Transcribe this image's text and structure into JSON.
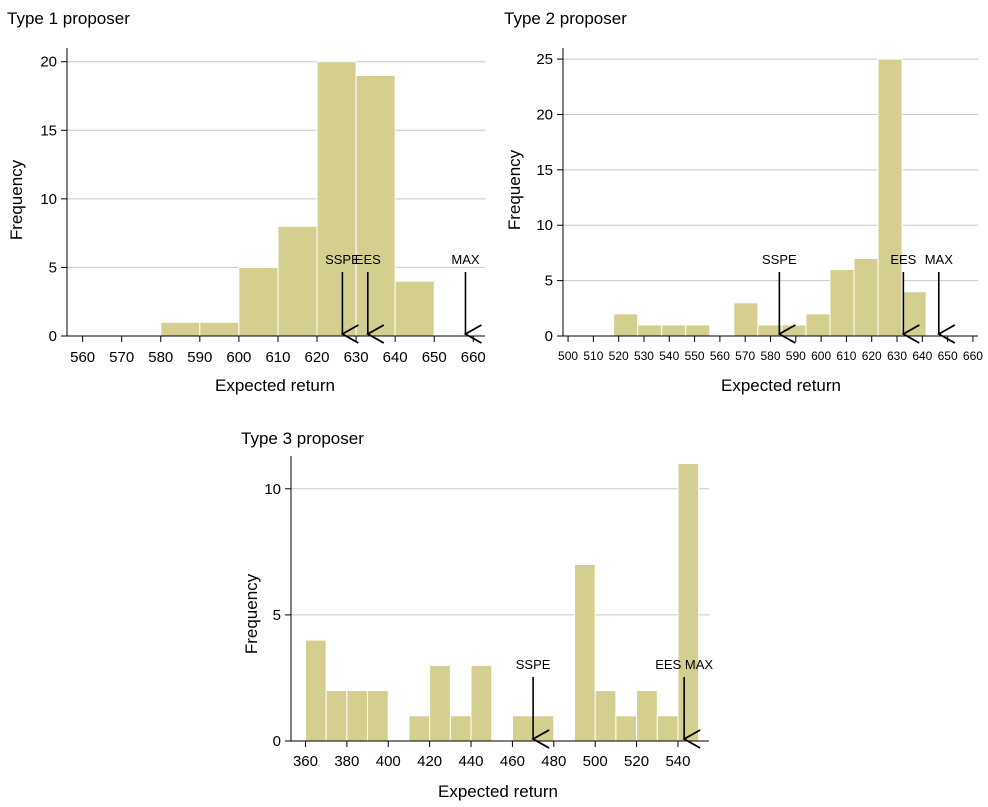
{
  "chart_data": [
    {
      "type": "bar",
      "title": "Type 1 proposer",
      "xlabel": "Expected return",
      "ylabel": "Frequency",
      "xlim": [
        556,
        663
      ],
      "ylim": [
        0,
        21
      ],
      "x_ticks": [
        560,
        570,
        580,
        590,
        600,
        610,
        620,
        630,
        640,
        650,
        660
      ],
      "y_ticks": [
        0,
        5,
        10,
        15,
        20
      ],
      "grid": true,
      "bar_color": "#d4cf8e",
      "bins": [
        {
          "start": 580,
          "end": 590,
          "value": 1
        },
        {
          "start": 590,
          "end": 600,
          "value": 1
        },
        {
          "start": 600,
          "end": 610,
          "value": 5
        },
        {
          "start": 610,
          "end": 620,
          "value": 8
        },
        {
          "start": 620,
          "end": 630,
          "value": 20
        },
        {
          "start": 630,
          "end": 640,
          "value": 19
        },
        {
          "start": 640,
          "end": 650,
          "value": 4
        }
      ],
      "annotations": [
        {
          "label": "SSPE",
          "x": 626.5
        },
        {
          "label": "EES",
          "x": 633
        },
        {
          "label": "MAX",
          "x": 658
        }
      ]
    },
    {
      "type": "bar",
      "title": "Type 2 proposer",
      "xlabel": "Expected return",
      "ylabel": "Frequency",
      "xlim": [
        498,
        662
      ],
      "ylim": [
        0,
        26
      ],
      "x_ticks": [
        500,
        510,
        520,
        530,
        540,
        550,
        560,
        570,
        580,
        590,
        600,
        610,
        620,
        630,
        640,
        650,
        660
      ],
      "y_ticks": [
        0,
        5,
        10,
        15,
        20,
        25
      ],
      "grid": true,
      "bar_color": "#d4cf8e",
      "bins": [
        {
          "start": 518,
          "end": 527.5,
          "value": 2
        },
        {
          "start": 527.5,
          "end": 537,
          "value": 1
        },
        {
          "start": 537,
          "end": 546.5,
          "value": 1
        },
        {
          "start": 546.5,
          "end": 556,
          "value": 1
        },
        {
          "start": 565.5,
          "end": 575,
          "value": 3
        },
        {
          "start": 575,
          "end": 584.5,
          "value": 1
        },
        {
          "start": 584.5,
          "end": 594,
          "value": 1
        },
        {
          "start": 594,
          "end": 603.5,
          "value": 2
        },
        {
          "start": 603.5,
          "end": 613,
          "value": 6
        },
        {
          "start": 613,
          "end": 622.5,
          "value": 7
        },
        {
          "start": 622.5,
          "end": 632,
          "value": 25
        },
        {
          "start": 632,
          "end": 641.5,
          "value": 4
        }
      ],
      "annotations": [
        {
          "label": "SSPE",
          "x": 583.5
        },
        {
          "label": "EES",
          "x": 632.5
        },
        {
          "label": "MAX",
          "x": 646.5
        }
      ]
    },
    {
      "type": "bar",
      "title": "Type 3 proposer",
      "xlabel": "Expected return",
      "ylabel": "Frequency",
      "xlim": [
        353,
        555
      ],
      "ylim": [
        0,
        11.3
      ],
      "x_ticks": [
        360,
        380,
        400,
        420,
        440,
        460,
        480,
        500,
        520,
        540
      ],
      "y_ticks": [
        0,
        5,
        10
      ],
      "grid": true,
      "bar_color": "#d4cf8e",
      "bins": [
        {
          "start": 360,
          "end": 370,
          "value": 4
        },
        {
          "start": 370,
          "end": 380,
          "value": 2
        },
        {
          "start": 380,
          "end": 390,
          "value": 2
        },
        {
          "start": 390,
          "end": 400,
          "value": 2
        },
        {
          "start": 410,
          "end": 420,
          "value": 1
        },
        {
          "start": 420,
          "end": 430,
          "value": 3
        },
        {
          "start": 430,
          "end": 440,
          "value": 1
        },
        {
          "start": 440,
          "end": 450,
          "value": 3
        },
        {
          "start": 460,
          "end": 470,
          "value": 1
        },
        {
          "start": 470,
          "end": 480,
          "value": 1
        },
        {
          "start": 490,
          "end": 500,
          "value": 7
        },
        {
          "start": 500,
          "end": 510,
          "value": 2
        },
        {
          "start": 510,
          "end": 520,
          "value": 1
        },
        {
          "start": 520,
          "end": 530,
          "value": 2
        },
        {
          "start": 530,
          "end": 540,
          "value": 1
        },
        {
          "start": 540,
          "end": 550,
          "value": 11
        }
      ],
      "annotations": [
        {
          "label": "SSPE",
          "x": 470
        },
        {
          "label": "EES MAX",
          "x": 543
        }
      ]
    }
  ]
}
